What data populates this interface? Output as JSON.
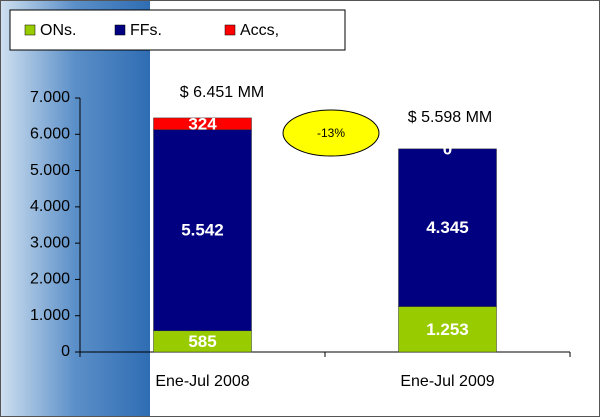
{
  "chart_data": {
    "type": "stacked_bar",
    "categories": [
      "Ene-Jul 2008",
      "Ene-Jul 2009"
    ],
    "series": [
      {
        "name": "ONs.",
        "color": "#99cc00",
        "values": [
          585,
          1253
        ],
        "value_labels": [
          "585",
          "1.253"
        ]
      },
      {
        "name": "FFs.",
        "color": "#000080",
        "values": [
          5542,
          4345
        ],
        "value_labels": [
          "5.542",
          "4.345"
        ]
      },
      {
        "name": "Accs,",
        "color": "#ff0000",
        "values": [
          324,
          0
        ],
        "value_labels": [
          "324",
          "0"
        ]
      }
    ],
    "ylim": [
      0,
      7000
    ],
    "yticks": [
      0,
      {
        "value": 1000,
        "label": "1.000"
      },
      {
        "value": 2000,
        "label": "2.000"
      },
      {
        "value": 3000,
        "label": "3.000"
      },
      {
        "value": 4000,
        "label": "4.000"
      },
      {
        "value": 5000,
        "label": "5.000"
      },
      {
        "value": 6000,
        "label": "6.000"
      },
      {
        "value": 7000,
        "label": "7.000"
      }
    ],
    "annotations": [
      "$ 6.451 MM",
      "$ 5.598 MM",
      "-13%"
    ],
    "annotation_color": "#ffff00"
  }
}
